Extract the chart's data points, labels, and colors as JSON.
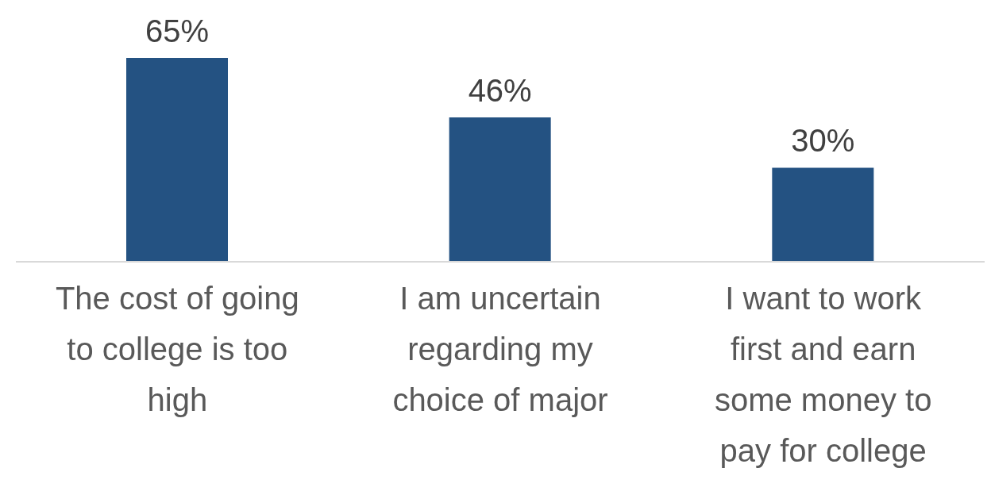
{
  "chart_data": {
    "type": "bar",
    "categories": [
      "The cost of going to college is too high",
      "I am uncertain regarding my choice of major",
      "I want to work first and earn some money to pay for college"
    ],
    "values": [
      65,
      46,
      30
    ],
    "value_labels": [
      "65%",
      "46%",
      "30%"
    ],
    "color": "#245282",
    "grid": false,
    "legend": false
  }
}
